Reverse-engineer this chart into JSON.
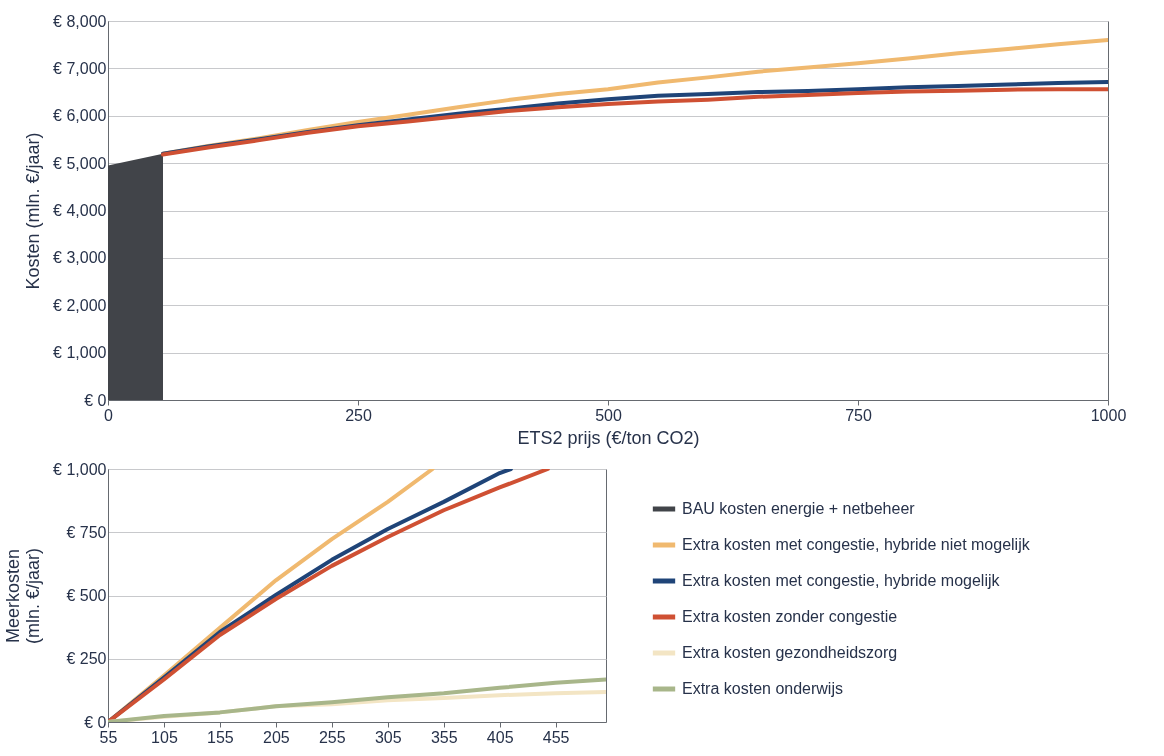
{
  "chart_data": [
    {
      "type": "line",
      "xlabel": "ETS2 prijs (€/ton CO2)",
      "ylabel": "Kosten (mln. €/jaar)",
      "xlim": [
        0,
        1000
      ],
      "xticks": [
        0,
        250,
        500,
        750,
        1000
      ],
      "ylim": [
        0,
        8000
      ],
      "yticks": [
        {
          "value": 0,
          "label": "€ 0"
        },
        {
          "value": 1000,
          "label": "€ 1,000"
        },
        {
          "value": 2000,
          "label": "€ 2,000"
        },
        {
          "value": 3000,
          "label": "€ 3,000"
        },
        {
          "value": 4000,
          "label": "€ 4,000"
        },
        {
          "value": 5000,
          "label": "€ 5,000"
        },
        {
          "value": 6000,
          "label": "€ 6,000"
        },
        {
          "value": 7000,
          "label": "€ 7,000"
        },
        {
          "value": 8000,
          "label": "€ 8,000"
        }
      ],
      "grid": "y",
      "legend": "right",
      "x": [
        55,
        100,
        150,
        200,
        250,
        300,
        350,
        400,
        450,
        500,
        550,
        600,
        650,
        700,
        750,
        800,
        850,
        900,
        950,
        1000
      ],
      "series": [
        {
          "name": "BAU kosten energie + netbeheer",
          "type": "area",
          "color": "#414449",
          "x": [
            0,
            55
          ],
          "values": [
            4950,
            5200
          ]
        },
        {
          "name": "Extra kosten met congestie, hybride niet mogelijk",
          "color": "#f0b96f",
          "values": [
            5200,
            5360,
            5520,
            5700,
            5870,
            6020,
            6180,
            6330,
            6460,
            6560,
            6700,
            6810,
            6930,
            7020,
            7110,
            7210,
            7320,
            7410,
            7510,
            7600
          ]
        },
        {
          "name": "Extra kosten met congestie, hybride mogelijk",
          "color": "#1f4478",
          "values": [
            5200,
            5350,
            5500,
            5660,
            5800,
            5920,
            6040,
            6150,
            6260,
            6350,
            6420,
            6460,
            6500,
            6520,
            6560,
            6600,
            6630,
            6660,
            6690,
            6710
          ]
        },
        {
          "name": "Extra kosten zonder congestie",
          "color": "#cf5033",
          "values": [
            5180,
            5330,
            5480,
            5640,
            5780,
            5880,
            5990,
            6100,
            6180,
            6250,
            6300,
            6340,
            6400,
            6440,
            6480,
            6510,
            6530,
            6550,
            6560,
            6560
          ]
        }
      ]
    },
    {
      "type": "line",
      "ylabel": "Meerkosten (mln. €/jaar)",
      "xlim": [
        55,
        500
      ],
      "xticks": [
        55,
        105,
        155,
        205,
        255,
        305,
        355,
        405,
        455
      ],
      "ylim": [
        0,
        1000
      ],
      "yticks": [
        {
          "value": 0,
          "label": "€ 0"
        },
        {
          "value": 250,
          "label": "€ 250"
        },
        {
          "value": 500,
          "label": "€ 500"
        },
        {
          "value": 750,
          "label": "€ 750"
        },
        {
          "value": 1000,
          "label": "€ 1,000"
        }
      ],
      "grid": "y",
      "legend": "right",
      "series": [
        {
          "name": "Extra kosten met congestie, hybride niet mogelijk",
          "color": "#f0b96f",
          "x": [
            55,
            105,
            155,
            205,
            255,
            305,
            345
          ],
          "values": [
            0,
            184,
            372,
            560,
            723,
            870,
            1000
          ]
        },
        {
          "name": "Extra kosten met congestie, hybride mogelijk",
          "color": "#1f4478",
          "x": [
            55,
            105,
            155,
            205,
            255,
            305,
            355,
            405,
            415
          ],
          "values": [
            0,
            176,
            356,
            502,
            641,
            763,
            870,
            984,
            1000
          ]
        },
        {
          "name": "Extra kosten zonder congestie",
          "color": "#cf5033",
          "x": [
            55,
            105,
            155,
            205,
            255,
            305,
            355,
            405,
            448
          ],
          "values": [
            0,
            168,
            344,
            486,
            617,
            731,
            837,
            927,
            1000
          ]
        },
        {
          "name": "Extra kosten gezondheidszorg",
          "color": "#f3e5c4",
          "x": [
            55,
            105,
            155,
            205,
            255,
            305,
            355,
            405,
            455,
            500
          ],
          "values": [
            0,
            21,
            38,
            62,
            70,
            86,
            95,
            106,
            114,
            119
          ]
        },
        {
          "name": "Extra kosten onderwijs",
          "color": "#a8b68a",
          "x": [
            55,
            105,
            155,
            205,
            255,
            305,
            355,
            405,
            455,
            500
          ],
          "values": [
            0,
            24,
            38,
            62,
            78,
            98,
            114,
            135,
            155,
            168
          ]
        }
      ]
    }
  ]
}
